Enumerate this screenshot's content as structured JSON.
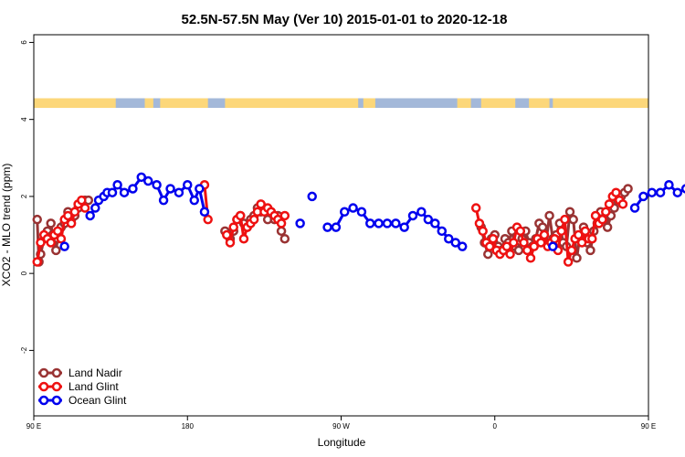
{
  "chart_data": {
    "type": "line",
    "title": "52.5N-57.5N May (Ver 10)   2015-01-01 to 2020-12-18",
    "xlabel": "Longitude",
    "ylabel": "XCO2 - MLO trend (ppm)",
    "xlim": [
      90,
      450
    ],
    "ylim": [
      -3.7,
      6.2
    ],
    "x_ticks": [
      {
        "value": 90,
        "label": "90 E"
      },
      {
        "value": 180,
        "label": "180"
      },
      {
        "value": 270,
        "label": "90 W"
      },
      {
        "value": 360,
        "label": "0"
      },
      {
        "value": 450,
        "label": "90 E"
      },
      {
        "value": 540,
        "label": "180"
      }
    ],
    "y_ticks": [
      {
        "value": -2,
        "label": "-2"
      },
      {
        "value": 0,
        "label": "0"
      },
      {
        "value": 2,
        "label": "2"
      },
      {
        "value": 4,
        "label": "4"
      },
      {
        "value": 6,
        "label": "6"
      }
    ],
    "grid": false,
    "legend_position": "bottom-left",
    "land_ocean_strip": {
      "y_range": [
        4.3,
        4.55
      ],
      "ocean_color": "#a3b8d9",
      "land_color": "#fcd77a",
      "land_segments": [
        [
          90,
          138
        ],
        [
          155,
          160
        ],
        [
          164,
          192
        ],
        [
          202,
          280
        ],
        [
          283,
          290
        ],
        [
          338,
          346
        ],
        [
          352,
          372
        ],
        [
          380,
          392
        ],
        [
          394,
          462
        ],
        [
          471,
          474
        ],
        [
          520,
          530
        ]
      ]
    },
    "series": [
      {
        "name": "Land Nadir",
        "color": "#993333",
        "points": [
          [
            92,
            1.4
          ],
          [
            93,
            0.3
          ],
          [
            94,
            0.5
          ],
          [
            96,
            0.9
          ],
          [
            98,
            1.1
          ],
          [
            100,
            1.3
          ],
          [
            101,
            1.0
          ],
          [
            103,
            0.6
          ],
          [
            104,
            0.9
          ],
          [
            106,
            1.2
          ],
          [
            108,
            1.3
          ],
          [
            110,
            1.6
          ],
          [
            112,
            1.4
          ],
          [
            114,
            1.5
          ],
          [
            116,
            1.7
          ],
          [
            118,
            1.8
          ],
          [
            120,
            1.9
          ],
          [
            122,
            1.9
          ],
          [
            202,
            1.1
          ],
          [
            205,
            0.9
          ],
          [
            207,
            1.1
          ],
          [
            209,
            1.4
          ],
          [
            211,
            1.5
          ],
          [
            213,
            1.3
          ],
          [
            215,
            1.2
          ],
          [
            217,
            1.4
          ],
          [
            219,
            1.5
          ],
          [
            221,
            1.7
          ],
          [
            223,
            1.6
          ],
          [
            225,
            1.7
          ],
          [
            227,
            1.4
          ],
          [
            229,
            1.6
          ],
          [
            231,
            1.4
          ],
          [
            233,
            1.5
          ],
          [
            235,
            1.1
          ],
          [
            237,
            0.9
          ],
          [
            352,
            1.2
          ],
          [
            354,
            0.8
          ],
          [
            356,
            0.5
          ],
          [
            358,
            0.9
          ],
          [
            360,
            1.0
          ],
          [
            362,
            0.7
          ],
          [
            364,
            0.6
          ],
          [
            366,
            0.9
          ],
          [
            368,
            0.8
          ],
          [
            370,
            1.1
          ],
          [
            372,
            0.7
          ],
          [
            374,
            0.6
          ],
          [
            376,
            0.9
          ],
          [
            378,
            1.1
          ],
          [
            380,
            0.8
          ],
          [
            382,
            0.7
          ],
          [
            384,
            0.9
          ],
          [
            386,
            1.3
          ],
          [
            388,
            1.2
          ],
          [
            390,
            0.8
          ],
          [
            392,
            1.5
          ],
          [
            394,
            0.9
          ],
          [
            396,
            1.0
          ],
          [
            398,
            1.3
          ],
          [
            400,
            0.8
          ],
          [
            402,
            0.7
          ],
          [
            404,
            1.6
          ],
          [
            406,
            1.4
          ],
          [
            408,
            0.4
          ],
          [
            410,
            1.0
          ],
          [
            412,
            1.2
          ],
          [
            414,
            0.8
          ],
          [
            416,
            0.6
          ],
          [
            418,
            1.1
          ],
          [
            420,
            1.3
          ],
          [
            422,
            1.6
          ],
          [
            424,
            1.4
          ],
          [
            426,
            1.2
          ],
          [
            428,
            1.5
          ],
          [
            430,
            1.7
          ],
          [
            432,
            1.9
          ],
          [
            434,
            2.0
          ],
          [
            436,
            2.1
          ],
          [
            438,
            2.2
          ]
        ]
      },
      {
        "name": "Land Glint",
        "color": "#ee1111",
        "points": [
          [
            92,
            0.3
          ],
          [
            94,
            0.8
          ],
          [
            96,
            1.0
          ],
          [
            98,
            0.9
          ],
          [
            100,
            0.8
          ],
          [
            102,
            1.0
          ],
          [
            104,
            1.1
          ],
          [
            106,
            0.9
          ],
          [
            108,
            1.4
          ],
          [
            110,
            1.5
          ],
          [
            112,
            1.3
          ],
          [
            114,
            1.6
          ],
          [
            116,
            1.8
          ],
          [
            118,
            1.9
          ],
          [
            120,
            1.7
          ],
          [
            190,
            2.3
          ],
          [
            192,
            1.4
          ],
          [
            203,
            1.0
          ],
          [
            205,
            0.8
          ],
          [
            207,
            1.2
          ],
          [
            209,
            1.4
          ],
          [
            211,
            1.5
          ],
          [
            213,
            0.9
          ],
          [
            215,
            1.2
          ],
          [
            217,
            1.3
          ],
          [
            219,
            1.4
          ],
          [
            221,
            1.6
          ],
          [
            223,
            1.8
          ],
          [
            225,
            1.6
          ],
          [
            227,
            1.7
          ],
          [
            229,
            1.6
          ],
          [
            231,
            1.5
          ],
          [
            233,
            1.4
          ],
          [
            235,
            1.3
          ],
          [
            237,
            1.5
          ],
          [
            349,
            1.7
          ],
          [
            351,
            1.3
          ],
          [
            353,
            1.1
          ],
          [
            355,
            0.8
          ],
          [
            357,
            0.7
          ],
          [
            359,
            0.9
          ],
          [
            361,
            0.6
          ],
          [
            363,
            0.5
          ],
          [
            365,
            0.6
          ],
          [
            367,
            0.7
          ],
          [
            369,
            0.5
          ],
          [
            371,
            0.8
          ],
          [
            373,
            1.2
          ],
          [
            375,
            1.1
          ],
          [
            377,
            0.8
          ],
          [
            379,
            0.6
          ],
          [
            381,
            0.4
          ],
          [
            383,
            0.7
          ],
          [
            385,
            0.9
          ],
          [
            387,
            0.8
          ],
          [
            389,
            1.0
          ],
          [
            391,
            0.7
          ],
          [
            393,
            0.8
          ],
          [
            395,
            0.9
          ],
          [
            397,
            0.6
          ],
          [
            399,
            1.1
          ],
          [
            401,
            1.4
          ],
          [
            403,
            0.3
          ],
          [
            405,
            0.6
          ],
          [
            407,
            0.9
          ],
          [
            409,
            1.0
          ],
          [
            411,
            0.8
          ],
          [
            413,
            1.1
          ],
          [
            415,
            0.9
          ],
          [
            417,
            0.9
          ],
          [
            419,
            1.5
          ],
          [
            421,
            1.3
          ],
          [
            423,
            1.4
          ],
          [
            425,
            1.6
          ],
          [
            427,
            1.8
          ],
          [
            429,
            2.0
          ],
          [
            431,
            2.1
          ],
          [
            433,
            1.9
          ],
          [
            435,
            1.8
          ]
        ]
      },
      {
        "name": "Ocean Glint",
        "color": "#0000ee",
        "points": [
          [
            108,
            0.7
          ],
          [
            123,
            1.5
          ],
          [
            126,
            1.7
          ],
          [
            128,
            1.9
          ],
          [
            131,
            2.0
          ],
          [
            133,
            2.1
          ],
          [
            136,
            2.1
          ],
          [
            139,
            2.3
          ],
          [
            143,
            2.1
          ],
          [
            148,
            2.2
          ],
          [
            153,
            2.5
          ],
          [
            157,
            2.4
          ],
          [
            162,
            2.3
          ],
          [
            166,
            1.9
          ],
          [
            170,
            2.2
          ],
          [
            175,
            2.1
          ],
          [
            180,
            2.3
          ],
          [
            184,
            1.9
          ],
          [
            187,
            2.2
          ],
          [
            190,
            1.6
          ],
          [
            246,
            1.3
          ],
          [
            253,
            2.0
          ],
          [
            262,
            1.2
          ],
          [
            267,
            1.2
          ],
          [
            272,
            1.6
          ],
          [
            277,
            1.7
          ],
          [
            282,
            1.6
          ],
          [
            287,
            1.3
          ],
          [
            292,
            1.3
          ],
          [
            297,
            1.3
          ],
          [
            302,
            1.3
          ],
          [
            307,
            1.2
          ],
          [
            312,
            1.5
          ],
          [
            317,
            1.6
          ],
          [
            321,
            1.4
          ],
          [
            325,
            1.3
          ],
          [
            329,
            1.1
          ],
          [
            333,
            0.9
          ],
          [
            337,
            0.8
          ],
          [
            341,
            0.7
          ],
          [
            394,
            0.7
          ],
          [
            442,
            1.7
          ],
          [
            447,
            2.0
          ],
          [
            452,
            2.1
          ],
          [
            457,
            2.1
          ],
          [
            462,
            2.3
          ],
          [
            467,
            2.1
          ],
          [
            472,
            2.2
          ],
          [
            477,
            2.5
          ]
        ]
      }
    ]
  }
}
